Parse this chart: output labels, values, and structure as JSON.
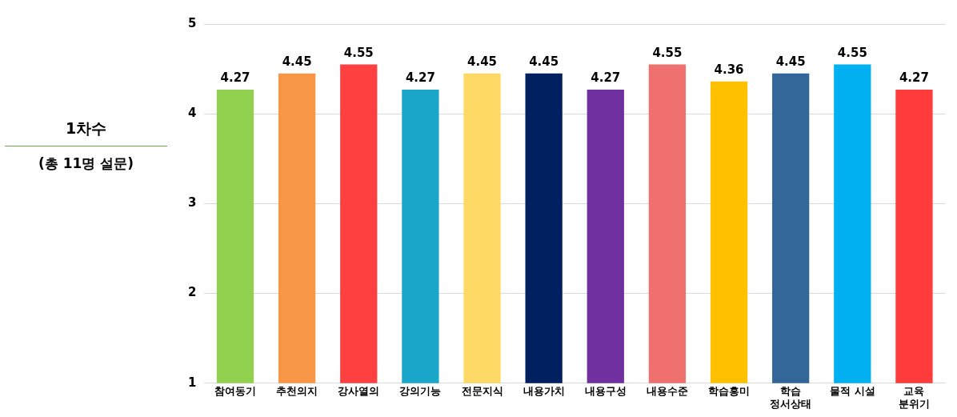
{
  "chart_data": {
    "type": "bar",
    "title": "1차수",
    "subtitle": "(총 11명 설문)",
    "categories": [
      "참여동기",
      "추천의지",
      "강사열의",
      "강의기능",
      "전문지식",
      "내용가치",
      "내용구성",
      "내용수준",
      "학습흥미",
      "학습\n정서상태",
      "물적 시설",
      "교육\n분위기"
    ],
    "values": [
      4.27,
      4.45,
      4.55,
      4.27,
      4.45,
      4.45,
      4.27,
      4.55,
      4.36,
      4.45,
      4.55,
      4.27
    ],
    "colors": [
      "#92d050",
      "#f79646",
      "#ff4040",
      "#1aa6c8",
      "#ffd966",
      "#002060",
      "#7030a0",
      "#f07070",
      "#ffc000",
      "#336699",
      "#00b0f0",
      "#ff3b3b"
    ],
    "ylim": [
      1,
      5
    ],
    "yticks": [
      1,
      2,
      3,
      4,
      5
    ],
    "grid": "y",
    "legend": false,
    "data_labels": true
  }
}
